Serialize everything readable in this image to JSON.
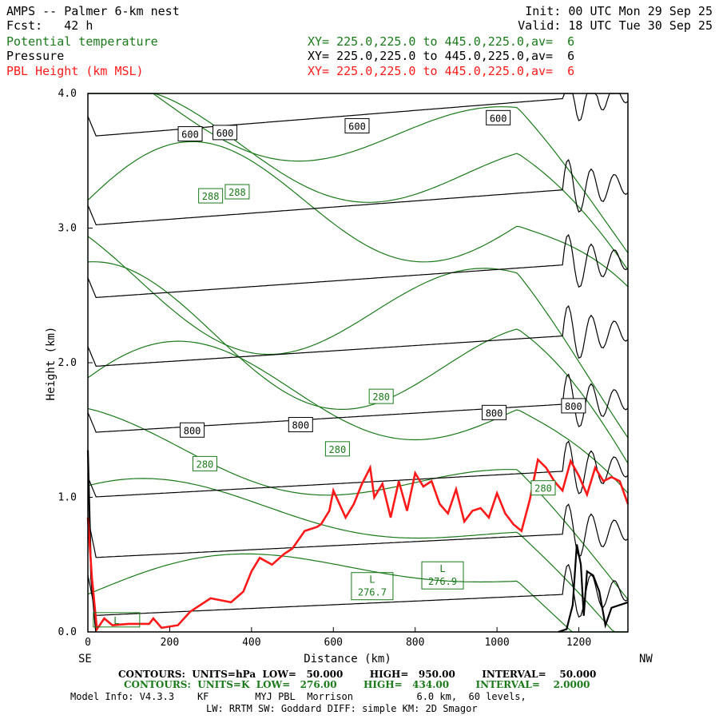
{
  "header": {
    "line1_left": "AMPS -- Palmer 6-km nest",
    "line2_left": "Fcst:   42 h",
    "init": "Init: 00 UTC Mon 29 Sep 25",
    "valid": "Valid: 18 UTC Tue 30 Sep 25"
  },
  "fields": [
    {
      "name": "Potential temperature",
      "xy": "XY= 225.0,225.0 to 445.0,225.0,av=  6",
      "color": "#1a7a1a"
    },
    {
      "name": "Pressure",
      "xy": "XY= 225.0,225.0 to 445.0,225.0,av=  6",
      "color": "#000000"
    },
    {
      "name": "PBL Height (km MSL)",
      "xy": "XY= 225.0,225.0 to 445.0,225.0,av=  6",
      "color": "#ff1a1a"
    }
  ],
  "chart_data": {
    "type": "line",
    "xlabel": "Distance (km)",
    "ylabel": "Height (km)",
    "xlim": [
      0,
      1320
    ],
    "ylim": [
      0,
      4.0
    ],
    "x_ticks": [
      "0",
      "200",
      "400",
      "600",
      "800",
      "1000",
      "1200"
    ],
    "y_ticks": [
      "0.0",
      "1.0",
      "2.0",
      "3.0",
      "4.0"
    ],
    "left_end_label": "SE",
    "right_end_label": "NW",
    "pressure_contour_labels": [
      {
        "text": "600",
        "x": 250,
        "y": 3.7
      },
      {
        "text": "600",
        "x": 335,
        "y": 3.71
      },
      {
        "text": "600",
        "x": 658,
        "y": 3.76
      },
      {
        "text": "600",
        "x": 1003,
        "y": 3.82
      },
      {
        "text": "800",
        "x": 255,
        "y": 1.5
      },
      {
        "text": "800",
        "x": 520,
        "y": 1.54
      },
      {
        "text": "800",
        "x": 993,
        "y": 1.63
      },
      {
        "text": "800",
        "x": 1187,
        "y": 1.68
      }
    ],
    "theta_contour_labels": [
      {
        "text": "288",
        "x": 300,
        "y": 3.24
      },
      {
        "text": "288",
        "x": 365,
        "y": 3.27
      },
      {
        "text": "280",
        "x": 286,
        "y": 1.25
      },
      {
        "text": "280",
        "x": 610,
        "y": 1.36
      },
      {
        "text": "280",
        "x": 717,
        "y": 1.75
      },
      {
        "text": "280",
        "x": 1113,
        "y": 1.07
      }
    ],
    "lows": [
      {
        "text": "L",
        "x": 70,
        "y": 0.09
      },
      {
        "text": "L",
        "x": 695,
        "y": 0.34,
        "value": "276.7"
      },
      {
        "text": "L",
        "x": 867,
        "y": 0.42,
        "value": "276.9"
      }
    ],
    "pbl_height": {
      "name": "PBL Height (km MSL)",
      "color": "#ff1a1a",
      "x": [
        0,
        10,
        22,
        40,
        60,
        100,
        150,
        160,
        180,
        220,
        250,
        300,
        350,
        380,
        400,
        420,
        450,
        480,
        500,
        530,
        560,
        570,
        590,
        600,
        630,
        650,
        670,
        690,
        700,
        720,
        740,
        760,
        780,
        800,
        820,
        840,
        860,
        880,
        900,
        920,
        940,
        960,
        980,
        1000,
        1020,
        1040,
        1060,
        1080,
        1100,
        1120,
        1140,
        1160,
        1180,
        1200,
        1220,
        1240,
        1260,
        1280,
        1300,
        1320
      ],
      "y": [
        0.85,
        0.4,
        0.02,
        0.1,
        0.05,
        0.06,
        0.06,
        0.1,
        0.03,
        0.05,
        0.15,
        0.25,
        0.22,
        0.3,
        0.45,
        0.55,
        0.5,
        0.58,
        0.62,
        0.75,
        0.78,
        0.8,
        0.9,
        1.05,
        0.85,
        0.95,
        1.1,
        1.22,
        1.0,
        1.1,
        0.85,
        1.12,
        0.9,
        1.18,
        1.08,
        1.12,
        0.95,
        0.88,
        1.06,
        0.82,
        0.9,
        0.92,
        0.85,
        1.03,
        0.88,
        0.8,
        0.75,
        0.98,
        1.28,
        1.22,
        1.12,
        1.05,
        1.27,
        1.16,
        1.02,
        1.22,
        1.12,
        1.15,
        1.12,
        0.95
      ]
    },
    "legend": "none",
    "grid": false
  },
  "footer": {
    "contours_pressure": "CONTOURS:  UNITS=hPa  LOW=   50.000        HIGH=   950.00        INTERVAL=    50.000",
    "contours_theta": "CONTOURS:  UNITS=K  LOW=   276.00        HIGH=   434.00        INTERVAL=    2.0000",
    "model_info": "Model Info: V4.3.3    KF        MYJ PBL  Morrison           6.0 km,  60 levels,",
    "model_info2": "LW: RRTM SW: Goddard DIFF: simple KM: 2D Smagor"
  }
}
